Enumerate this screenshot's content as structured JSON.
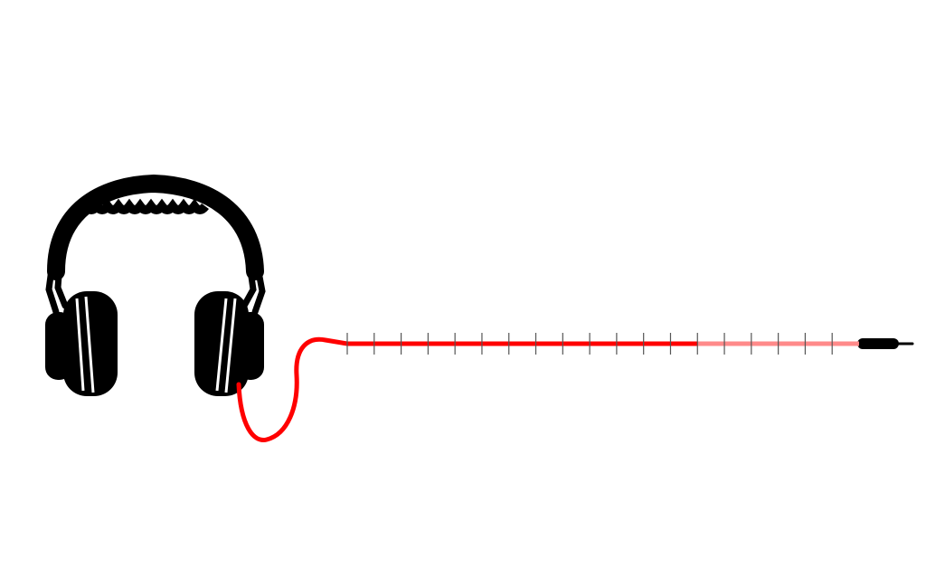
{
  "slider": {
    "range": [
      0,
      19
    ],
    "ticks": [
      0,
      1,
      2,
      3,
      4,
      5,
      6,
      7,
      8,
      9,
      10,
      11,
      12,
      13,
      14,
      15,
      16,
      17,
      18
    ],
    "value": 13
  }
}
